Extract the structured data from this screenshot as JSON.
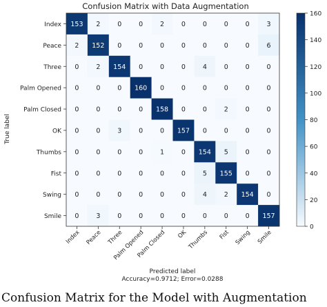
{
  "caption": "Confusion Matrix for the Model with Augmentation",
  "chart_data": {
    "type": "heatmap",
    "title": "Confusion Matrix with Data Augmentation",
    "xlabel": "Predicted label",
    "ylabel": "True label",
    "footer": "Accuracy=0.9712; Error=0.0288",
    "x_categories": [
      "Index",
      "Peace",
      "Three",
      "Palm Opened",
      "Palm Closed",
      "OK",
      "Thumbs",
      "Fist",
      "Swing",
      "Smile"
    ],
    "y_categories": [
      "Index",
      "Peace",
      "Three",
      "Palm Opened",
      "Palm Closed",
      "OK",
      "Thumbs",
      "Fist",
      "Swing",
      "Smile"
    ],
    "values": [
      [
        153,
        2,
        0,
        0,
        2,
        0,
        0,
        0,
        0,
        3
      ],
      [
        2,
        152,
        0,
        0,
        0,
        0,
        0,
        0,
        0,
        6
      ],
      [
        0,
        2,
        154,
        0,
        0,
        0,
        4,
        0,
        0,
        0
      ],
      [
        0,
        0,
        0,
        160,
        0,
        0,
        0,
        0,
        0,
        0
      ],
      [
        0,
        0,
        0,
        0,
        158,
        0,
        0,
        2,
        0,
        0
      ],
      [
        0,
        0,
        3,
        0,
        0,
        157,
        0,
        0,
        0,
        0
      ],
      [
        0,
        0,
        0,
        0,
        1,
        0,
        154,
        5,
        0,
        0
      ],
      [
        0,
        0,
        0,
        0,
        0,
        0,
        5,
        155,
        0,
        0
      ],
      [
        0,
        0,
        0,
        0,
        0,
        0,
        4,
        2,
        154,
        0
      ],
      [
        0,
        3,
        0,
        0,
        0,
        0,
        0,
        0,
        0,
        157
      ]
    ],
    "colorbar": {
      "min": 0,
      "max": 160,
      "ticks": [
        0,
        20,
        40,
        60,
        80,
        100,
        120,
        140,
        160
      ]
    },
    "colormap": {
      "low": "#f7fbff",
      "high": "#08306b"
    },
    "grid": false
  }
}
